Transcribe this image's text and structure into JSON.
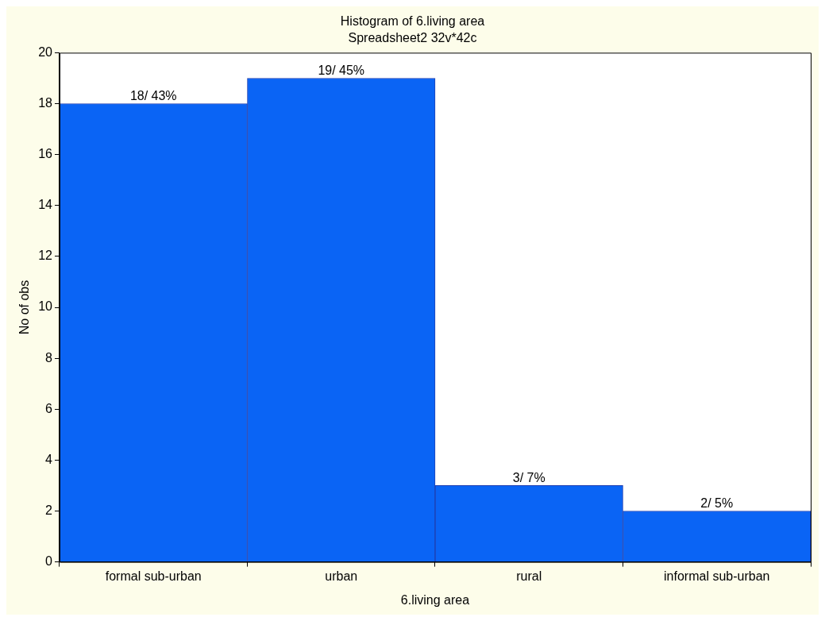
{
  "chart_data": {
    "type": "bar",
    "title": "Histogram of 6.living area",
    "subtitle": "Spreadsheet2 32v*42c",
    "xlabel": "6.living area",
    "ylabel": "No of obs",
    "categories": [
      "formal sub-urban",
      "urban",
      "rural",
      "informal sub-urban"
    ],
    "values": [
      18,
      19,
      3,
      2
    ],
    "color": "#0a64f5",
    "value_labels": [
      "18/ 43%",
      "19/ 45%",
      "3/ 7%",
      "2/ 5%"
    ],
    "ylim": [
      0,
      20
    ],
    "yticks": [
      0,
      2,
      4,
      6,
      8,
      10,
      12,
      14,
      16,
      18,
      20
    ],
    "grid": false,
    "legend": false
  }
}
